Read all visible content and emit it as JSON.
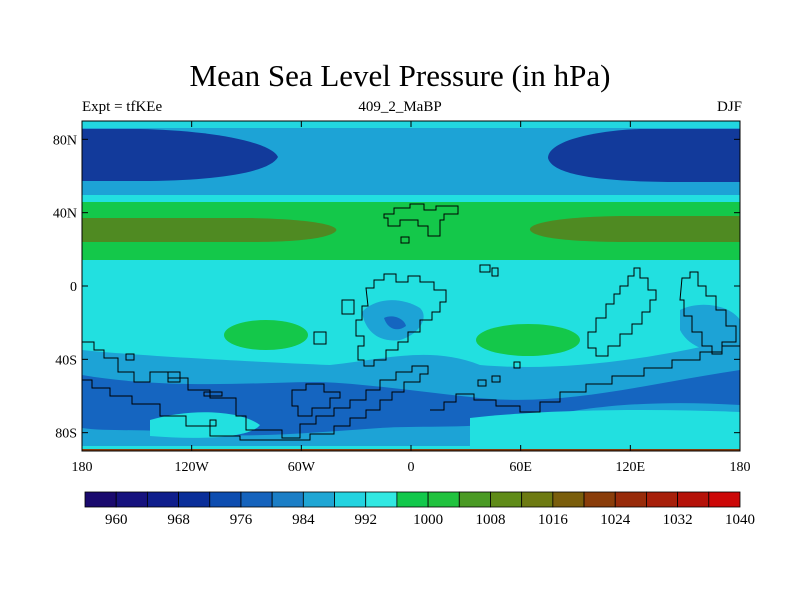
{
  "figure": {
    "title": "Mean Sea Level Pressure (in hPa)",
    "left_label": "Expt = tfKEe",
    "center_label": "409_2_MaBP",
    "right_label": "DJF"
  },
  "map": {
    "projection": "cylindrical-equidistant",
    "lon_range": [
      -180,
      180
    ],
    "lat_range": [
      -90,
      90
    ],
    "x_ticks": [
      "180",
      "120W",
      "60W",
      "0",
      "60E",
      "120E",
      "180"
    ],
    "y_ticks": [
      "80N",
      "40N",
      "0",
      "40S",
      "80S"
    ]
  },
  "colorbar": {
    "labels": [
      "960",
      "968",
      "976",
      "984",
      "992",
      "1000",
      "1008",
      "1016",
      "1024",
      "1032",
      "1040"
    ],
    "colors": [
      "#1a0a6e",
      "#16127e",
      "#0f1e8c",
      "#0a2e99",
      "#0d4db0",
      "#1563bd",
      "#1b7ec6",
      "#1fa6d4",
      "#23d3e0",
      "#31e8e2",
      "#12c84b",
      "#20c23e",
      "#4a9a24",
      "#5f8b18",
      "#6d7a12",
      "#7a5e0c",
      "#8a3d0a",
      "#982b0a",
      "#a71f0a",
      "#b51209",
      "#cc0808"
    ]
  },
  "fill_colors": {
    "polar_low": "#123a9b",
    "subpolar": "#1565c0",
    "mid_blue": "#1da3d6",
    "cyan": "#22e0e0",
    "green": "#14c84a",
    "olive": "#4f8a22",
    "brown": "#8a3d0a"
  }
}
